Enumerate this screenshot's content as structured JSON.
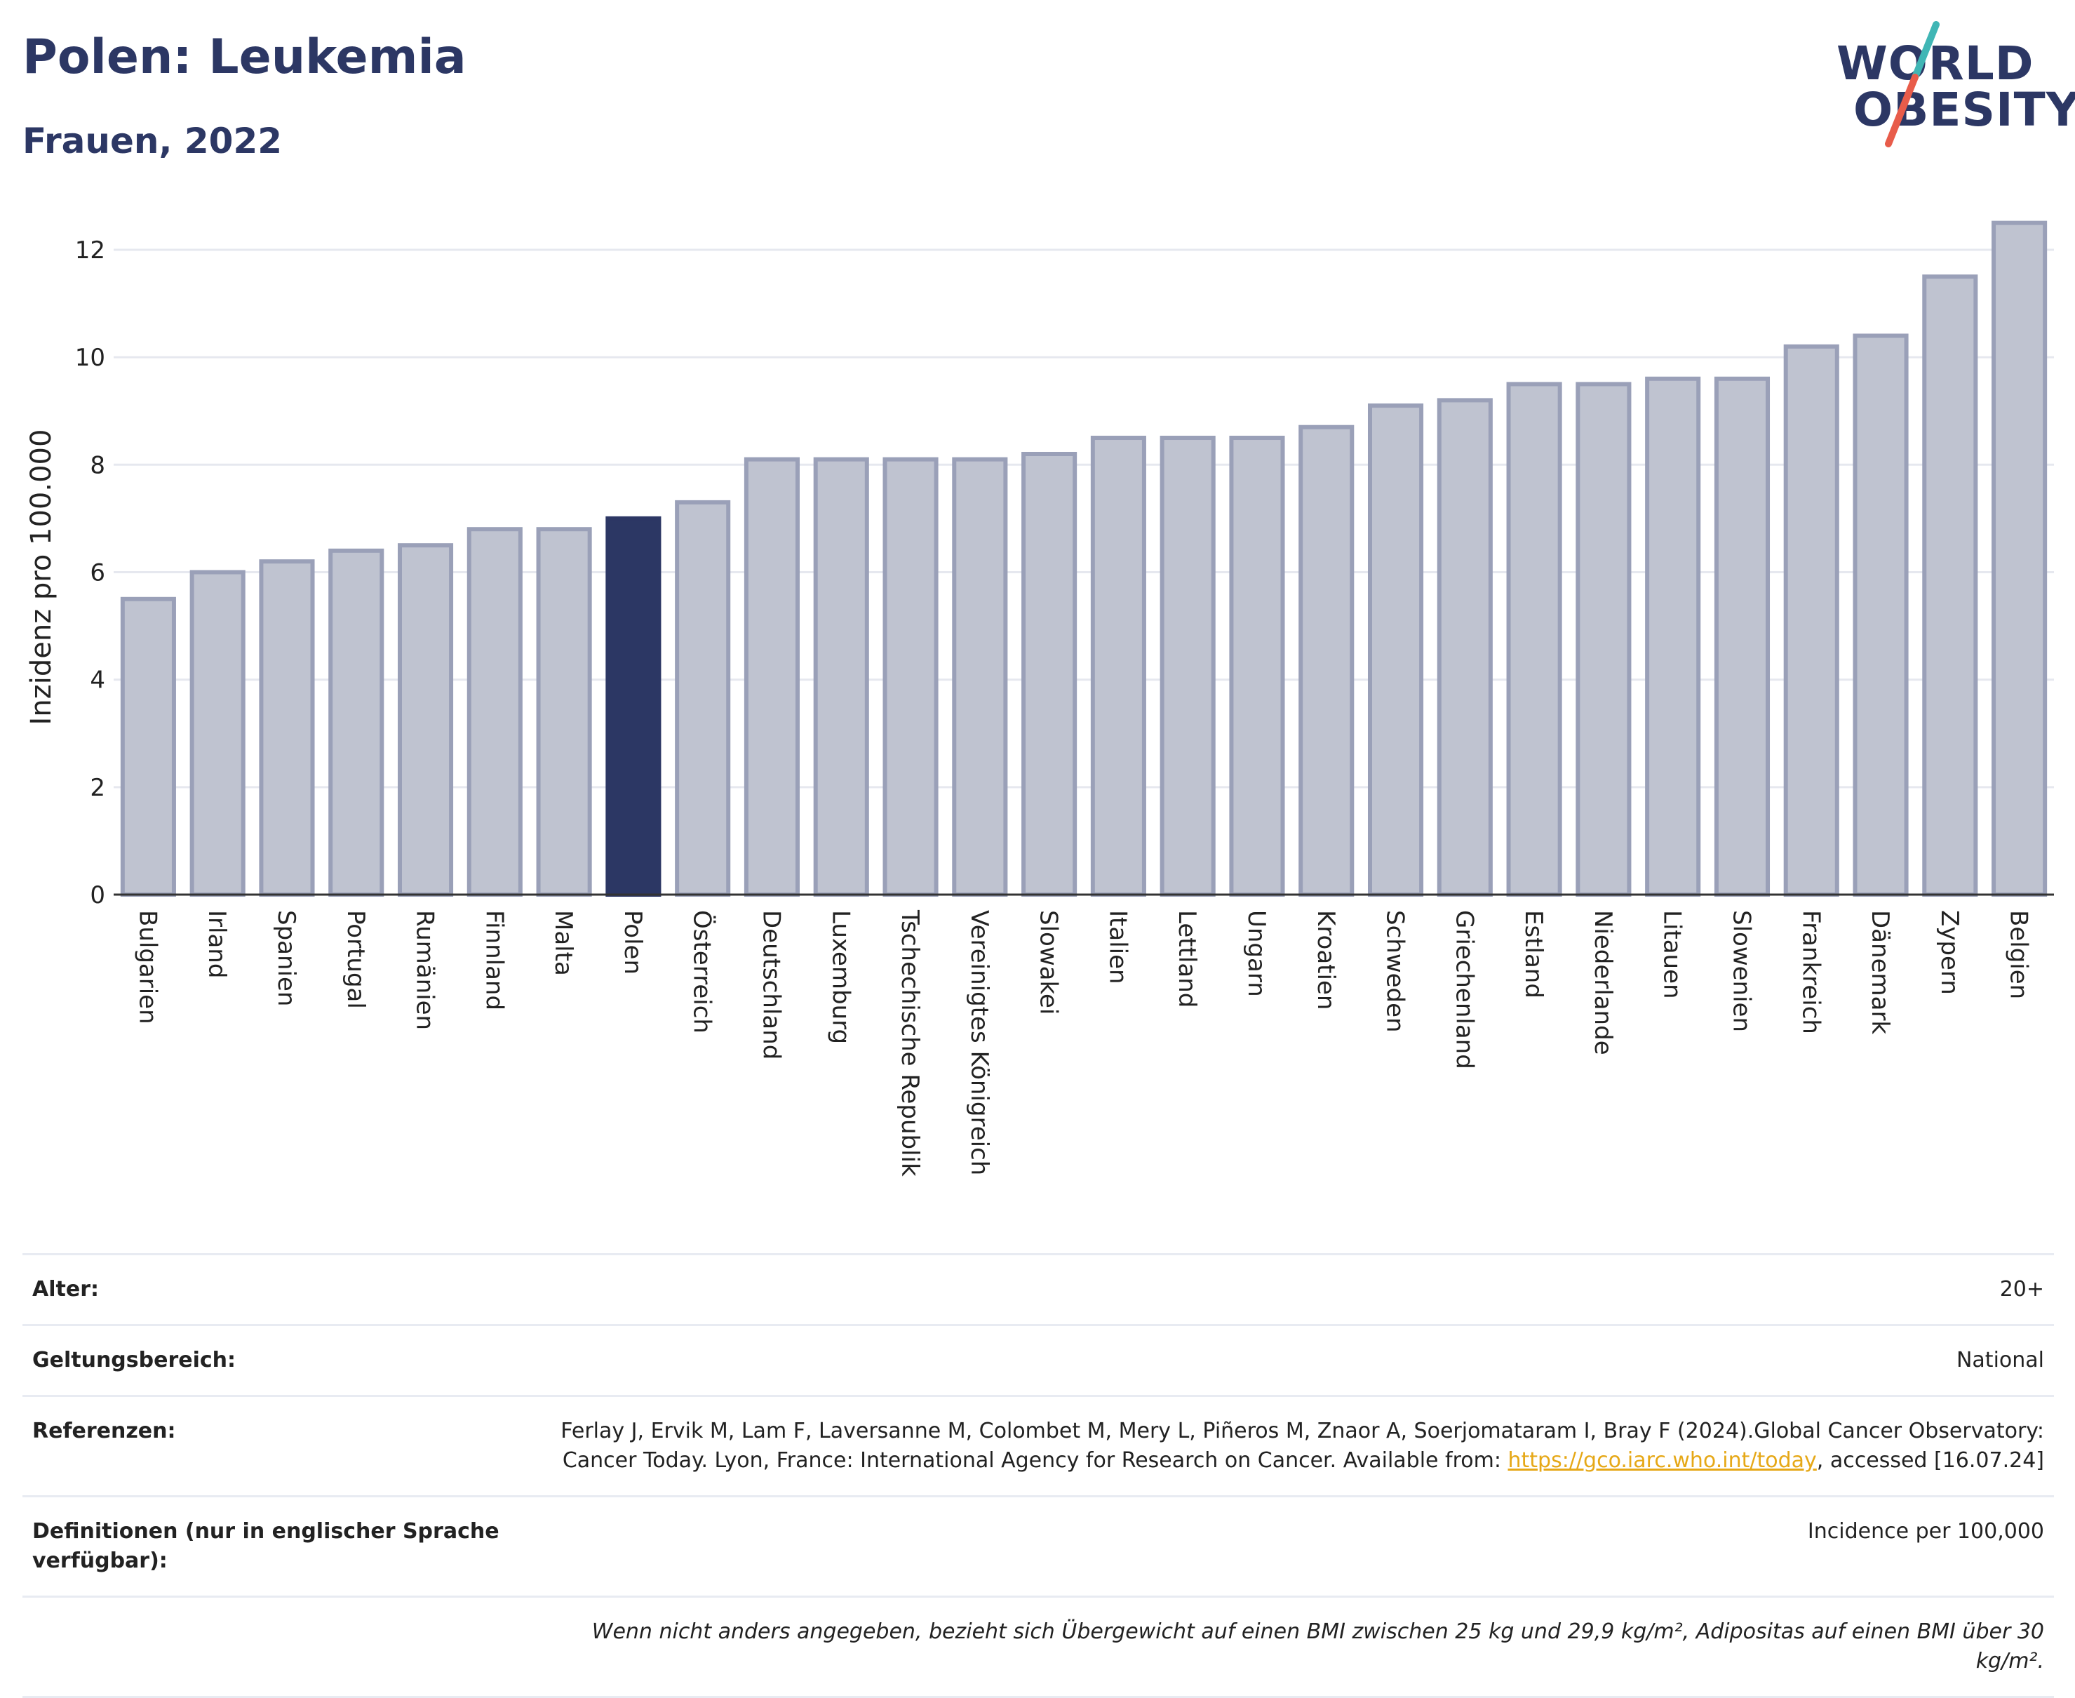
{
  "header": {
    "title": "Polen: Leukemia",
    "subtitle": "Frauen, 2022"
  },
  "logo": {
    "line1": "WORLD",
    "line2": "OBESITY",
    "slash_colors": [
      "#40b6b5",
      "#e85c4a"
    ]
  },
  "colors": {
    "highlight": "#2c3764",
    "bar": "#bfc3d0",
    "bar_edge": "#9aa0b8",
    "brand": "#2c3764",
    "link": "#e6a817"
  },
  "chart_data": {
    "type": "bar",
    "ylabel": "Inzidenz pro 100.000",
    "ylim": [
      0,
      12.6
    ],
    "yticks": [
      0,
      2,
      4,
      6,
      8,
      10,
      12
    ],
    "grid": true,
    "highlight": "Polen",
    "categories": [
      "Bulgarien",
      "Irland",
      "Spanien",
      "Portugal",
      "Rumänien",
      "Finnland",
      "Malta",
      "Polen",
      "Österreich",
      "Deutschland",
      "Luxemburg",
      "Tschechische Republik",
      "Vereinigtes Königreich",
      "Slowakei",
      "Italien",
      "Lettland",
      "Ungarn",
      "Kroatien",
      "Schweden",
      "Griechenland",
      "Estland",
      "Niederlande",
      "Litauen",
      "Slowenien",
      "Frankreich",
      "Dänemark",
      "Zypern",
      "Belgien"
    ],
    "values": [
      5.5,
      6.0,
      6.2,
      6.4,
      6.5,
      6.8,
      6.8,
      7.0,
      7.3,
      8.1,
      8.1,
      8.1,
      8.1,
      8.2,
      8.5,
      8.5,
      8.5,
      8.7,
      9.1,
      9.2,
      9.5,
      9.5,
      9.6,
      9.6,
      10.2,
      10.4,
      11.5,
      12.5
    ]
  },
  "info": {
    "age_label": "Alter:",
    "age_value": "20+",
    "scope_label": "Geltungsbereich:",
    "scope_value": "National",
    "ref_label": "Referenzen:",
    "ref_text_1": "Ferlay J, Ervik M, Lam F, Laversanne M, Colombet M, Mery L, Piñeros M, Znaor A, Soerjomataram I, Bray F (2024).Global Cancer Observatory: Cancer Today. Lyon, France: International Agency for Research on Cancer. Available from: ",
    "ref_link": "https://gco.iarc.who.int/today",
    "ref_text_2": ", accessed [16.07.24]",
    "def_label": "Definitionen (nur in englischer Sprache verfügbar):",
    "def_value": "Incidence per 100,000",
    "note": "Wenn nicht anders angegeben, bezieht sich Übergewicht auf einen BMI zwischen 25 kg und 29,9 kg/m², Adipositas auf einen BMI über 30 kg/m²."
  }
}
